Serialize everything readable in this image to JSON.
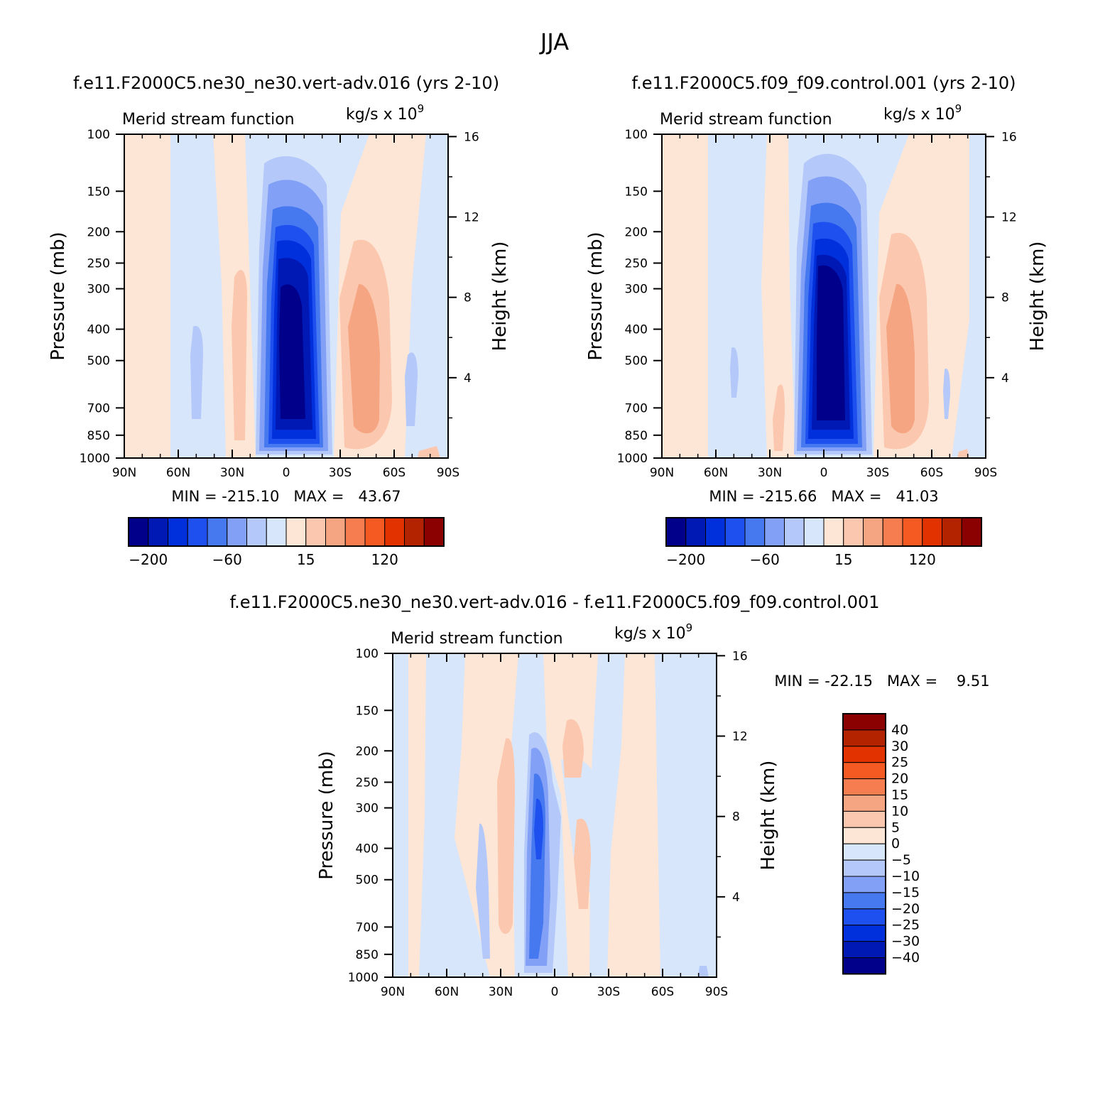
{
  "figure": {
    "title": "JJA"
  },
  "shared_axes": {
    "pressure_ticks": [
      "100",
      "150",
      "200",
      "250",
      "300",
      "400",
      "500",
      "700",
      "850",
      "1000"
    ],
    "height_ticks": [
      "16",
      "12",
      "8",
      "4"
    ],
    "lat_ticks": [
      "90N",
      "60N",
      "30N",
      "0",
      "30S",
      "60S",
      "90S"
    ],
    "ylabel_left": "Pressure (mb)",
    "ylabel_right": "Height (km)",
    "subtitle_left": "Merid stream function",
    "subtitle_right": "kg/s x 10",
    "subtitle_right_exp": "9"
  },
  "colors": {
    "main_levels": [
      "#00008b",
      "#0018b4",
      "#0030dc",
      "#1e50f0",
      "#4678f0",
      "#82a0f5",
      "#b4c8fa",
      "#d7e6fa",
      "#fde6d6",
      "#fbc8af",
      "#f5a582",
      "#f57d50",
      "#f55a23",
      "#e13200",
      "#b42300",
      "#8b0000"
    ],
    "diff_levels": [
      "#00008b",
      "#0018b4",
      "#0030dc",
      "#1e50f0",
      "#4678f0",
      "#82a0f5",
      "#b4c8fa",
      "#d7e6fa",
      "#fde6d6",
      "#fbc8af",
      "#f5a582",
      "#f57d50",
      "#f55a23",
      "#e13200",
      "#b42300",
      "#8b0000"
    ]
  },
  "panels": {
    "top_left": {
      "title": "f.e11.F2000C5.ne30_ne30.vert-adv.016 (yrs 2-10)",
      "stats": "MIN = -215.10   MAX =   43.67"
    },
    "top_right": {
      "title": "f.e11.F2000C5.f09_f09.control.001 (yrs 2-10)",
      "stats": "MIN = -215.66   MAX =   41.03"
    },
    "bottom": {
      "title": "f.e11.F2000C5.ne30_ne30.vert-adv.016 - f.e11.F2000C5.f09_f09.control.001",
      "stats": "MIN = -22.15   MAX =    9.51"
    }
  },
  "colorbars": {
    "main_labels": [
      "-200",
      "-60",
      "15",
      "120"
    ],
    "diff_labels": [
      "40",
      "30",
      "25",
      "20",
      "15",
      "10",
      "5",
      "0",
      "-5",
      "-10",
      "-15",
      "-20",
      "-25",
      "-30",
      "-40"
    ]
  },
  "chart_data": [
    {
      "type": "heatmap",
      "title": "f.e11.F2000C5.ne30_ne30.vert-adv.016 (yrs 2-10)",
      "ylabel": "Pressure (mb)",
      "y2label": "Height (km)",
      "x_range": [
        "90N",
        "90S"
      ],
      "y_range": [
        100,
        1000
      ],
      "y_scale": "log",
      "min": -215.1,
      "max": 43.67,
      "units": "kg/s x 10^9",
      "features": [
        {
          "kind": "cell-min",
          "lat": "3N",
          "pressure": 500,
          "value": -215.1
        },
        {
          "kind": "cell-max",
          "lat": "40S",
          "pressure": 450,
          "value": 43.67
        }
      ]
    },
    {
      "type": "heatmap",
      "title": "f.e11.F2000C5.f09_f09.control.001 (yrs 2-10)",
      "ylabel": "Pressure (mb)",
      "y2label": "Height (km)",
      "x_range": [
        "90N",
        "90S"
      ],
      "y_range": [
        100,
        1000
      ],
      "y_scale": "log",
      "min": -215.66,
      "max": 41.03,
      "units": "kg/s x 10^9",
      "features": [
        {
          "kind": "cell-min",
          "lat": "5N",
          "pressure": 550,
          "value": -215.66
        },
        {
          "kind": "cell-max",
          "lat": "42S",
          "pressure": 450,
          "value": 41.03
        }
      ]
    },
    {
      "type": "heatmap",
      "title": "f.e11.F2000C5.ne30_ne30.vert-adv.016 - f.e11.F2000C5.f09_f09.control.001",
      "ylabel": "Pressure (mb)",
      "y2label": "Height (km)",
      "x_range": [
        "90N",
        "90S"
      ],
      "y_range": [
        100,
        1000
      ],
      "y_scale": "log",
      "min": -22.15,
      "max": 9.51,
      "units": "kg/s x 10^9",
      "contour_levels": [
        -40,
        -30,
        -25,
        -20,
        -15,
        -10,
        -5,
        0,
        5,
        10,
        15,
        20,
        25,
        30,
        40
      ]
    }
  ]
}
